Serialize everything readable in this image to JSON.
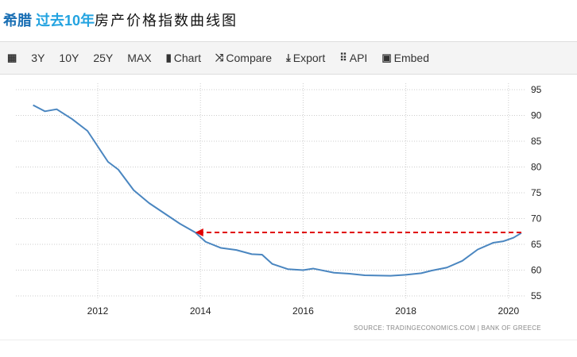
{
  "title": {
    "country": "希腊",
    "period": "过去10年",
    "rest": "房产价格指数曲线图"
  },
  "toolbar": [
    {
      "icon": "calendar-icon",
      "glyph": "▦",
      "label": ""
    },
    {
      "icon": "",
      "glyph": "",
      "label": "3Y"
    },
    {
      "icon": "",
      "glyph": "",
      "label": "10Y"
    },
    {
      "icon": "",
      "glyph": "",
      "label": "25Y"
    },
    {
      "icon": "",
      "glyph": "",
      "label": "MAX"
    },
    {
      "icon": "bar-chart-icon",
      "glyph": "▮",
      "label": "Chart"
    },
    {
      "icon": "shuffle-icon",
      "glyph": "⤨",
      "label": "Compare"
    },
    {
      "icon": "download-icon",
      "glyph": "⤓",
      "label": "Export"
    },
    {
      "icon": "grid-icon",
      "glyph": "⠿",
      "label": "API"
    },
    {
      "icon": "image-icon",
      "glyph": "▣",
      "label": "Embed"
    }
  ],
  "chart_data": {
    "type": "line",
    "x": [
      2010.74,
      2010.97,
      2011.2,
      2011.5,
      2011.8,
      2012.0,
      2012.2,
      2012.4,
      2012.7,
      2013.0,
      2013.3,
      2013.6,
      2013.9,
      2014.1,
      2014.4,
      2014.7,
      2015.0,
      2015.2,
      2015.4,
      2015.7,
      2016.0,
      2016.2,
      2016.6,
      2016.9,
      2017.2,
      2017.7,
      2018.0,
      2018.3,
      2018.5,
      2018.8,
      2019.1,
      2019.4,
      2019.7,
      2019.9,
      2020.1,
      2020.25
    ],
    "values": [
      92,
      90.8,
      91.2,
      89.3,
      87,
      84,
      81,
      79.5,
      75.5,
      73,
      71,
      69,
      67.3,
      65.5,
      64.3,
      63.9,
      63.1,
      63,
      61.2,
      60.2,
      60,
      60.3,
      59.5,
      59.3,
      59,
      58.9,
      59.1,
      59.4,
      59.9,
      60.5,
      61.8,
      64,
      65.3,
      65.6,
      66.3,
      67.2
    ],
    "xticks": [
      "2012",
      "2014",
      "2016",
      "2018",
      "2020"
    ],
    "yticks": [
      "55",
      "60",
      "65",
      "70",
      "75",
      "80",
      "85",
      "90",
      "95"
    ],
    "ylim": [
      55,
      95
    ],
    "xlim": [
      2010.5,
      2020.5
    ],
    "grid": true,
    "annotation": {
      "type": "dashed-arrow",
      "y": 67.3,
      "from_x": 2020.25,
      "to_x": 2013.9,
      "color": "#e00000"
    },
    "line_color": "#4a86c0",
    "source": "SOURCE: TRADINGECONOMICS.COM  |  BANK OF GREECE"
  }
}
